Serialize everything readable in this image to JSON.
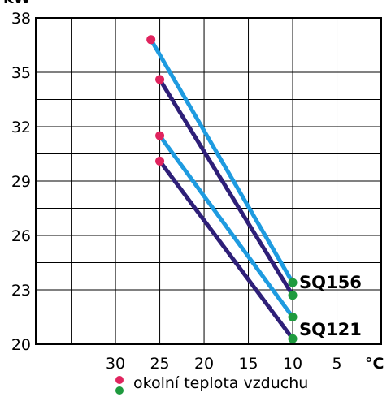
{
  "chart_data": {
    "type": "line",
    "ylabel": "kW",
    "xlabel": "°C",
    "x_ticks": [
      "30",
      "25",
      "20",
      "15",
      "10",
      "5"
    ],
    "y_ticks": [
      "20",
      "23",
      "26",
      "29",
      "32",
      "35",
      "38"
    ],
    "xlim": [
      39,
      0
    ],
    "ylim": [
      20,
      38
    ],
    "grid": true,
    "series": [
      {
        "points": [
          [
            26,
            36.8
          ],
          [
            10,
            23.4
          ]
        ],
        "line_color": "#1E9BE0"
      },
      {
        "points": [
          [
            25,
            34.6
          ],
          [
            10,
            22.7
          ]
        ],
        "line_color": "#2E1F78"
      },
      {
        "points": [
          [
            25,
            31.5
          ],
          [
            10,
            21.5
          ]
        ],
        "line_color": "#1E9BE0"
      },
      {
        "points": [
          [
            25,
            30.1
          ],
          [
            10,
            20.3
          ]
        ],
        "line_color": "#2E1F78"
      }
    ],
    "annotations": [
      {
        "text": "SQ156",
        "x": 10,
        "y": 23.4
      },
      {
        "text": "SQ121",
        "x": 10,
        "y": 20.8
      }
    ],
    "start_marker_color": "#E0245E",
    "end_marker_color": "#1E9A3E",
    "legend": {
      "text": "okolní teplota vzduchu",
      "placement": "bottom-center"
    }
  }
}
